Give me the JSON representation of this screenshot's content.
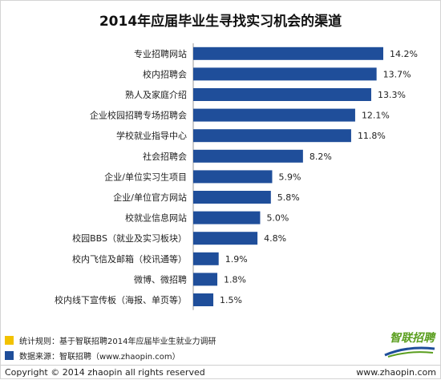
{
  "chart_data": {
    "type": "bar",
    "orientation": "horizontal",
    "title": "2014年应届毕业生寻找实习机会的渠道",
    "categories": [
      "专业招聘网站",
      "校内招聘会",
      "熟人及家庭介绍",
      "企业校园招聘专场招聘会",
      "学校就业指导中心",
      "社会招聘会",
      "企业/单位实习生项目",
      "企业/单位官方网站",
      "校就业信息网站",
      "校园BBS（就业及实习板块）",
      "校内飞信及邮箱（校讯通等）",
      "微博、微招聘",
      "校内线下宣传板（海报、单页等）"
    ],
    "values": [
      14.2,
      13.7,
      13.3,
      12.1,
      11.8,
      8.2,
      5.9,
      5.8,
      5.0,
      4.8,
      1.9,
      1.8,
      1.5
    ],
    "value_labels": [
      "14.2%",
      "13.7%",
      "13.3%",
      "12.1%",
      "11.8%",
      "8.2%",
      "5.9%",
      "5.8%",
      "5.0%",
      "4.8%",
      "1.9%",
      "1.8%",
      "1.5%"
    ],
    "bar_color": "#1f4e9a",
    "xlim": [
      0,
      14.2
    ],
    "grid": false,
    "legend": "none"
  },
  "notes": [
    {
      "text": "统计规则：基于智联招聘2014年应届毕业生就业力调研",
      "color": "#f2c200"
    },
    {
      "text": "数据来源：智联招聘（www.zhaopin.com）",
      "color": "#1f4e9a"
    }
  ],
  "brand": {
    "name": "智联招聘",
    "color": "#5a9e1e"
  },
  "footer": {
    "copyright": "Copyright  ©  2014 zhaopin all rights reserved",
    "url": "www.zhaopin.com"
  }
}
